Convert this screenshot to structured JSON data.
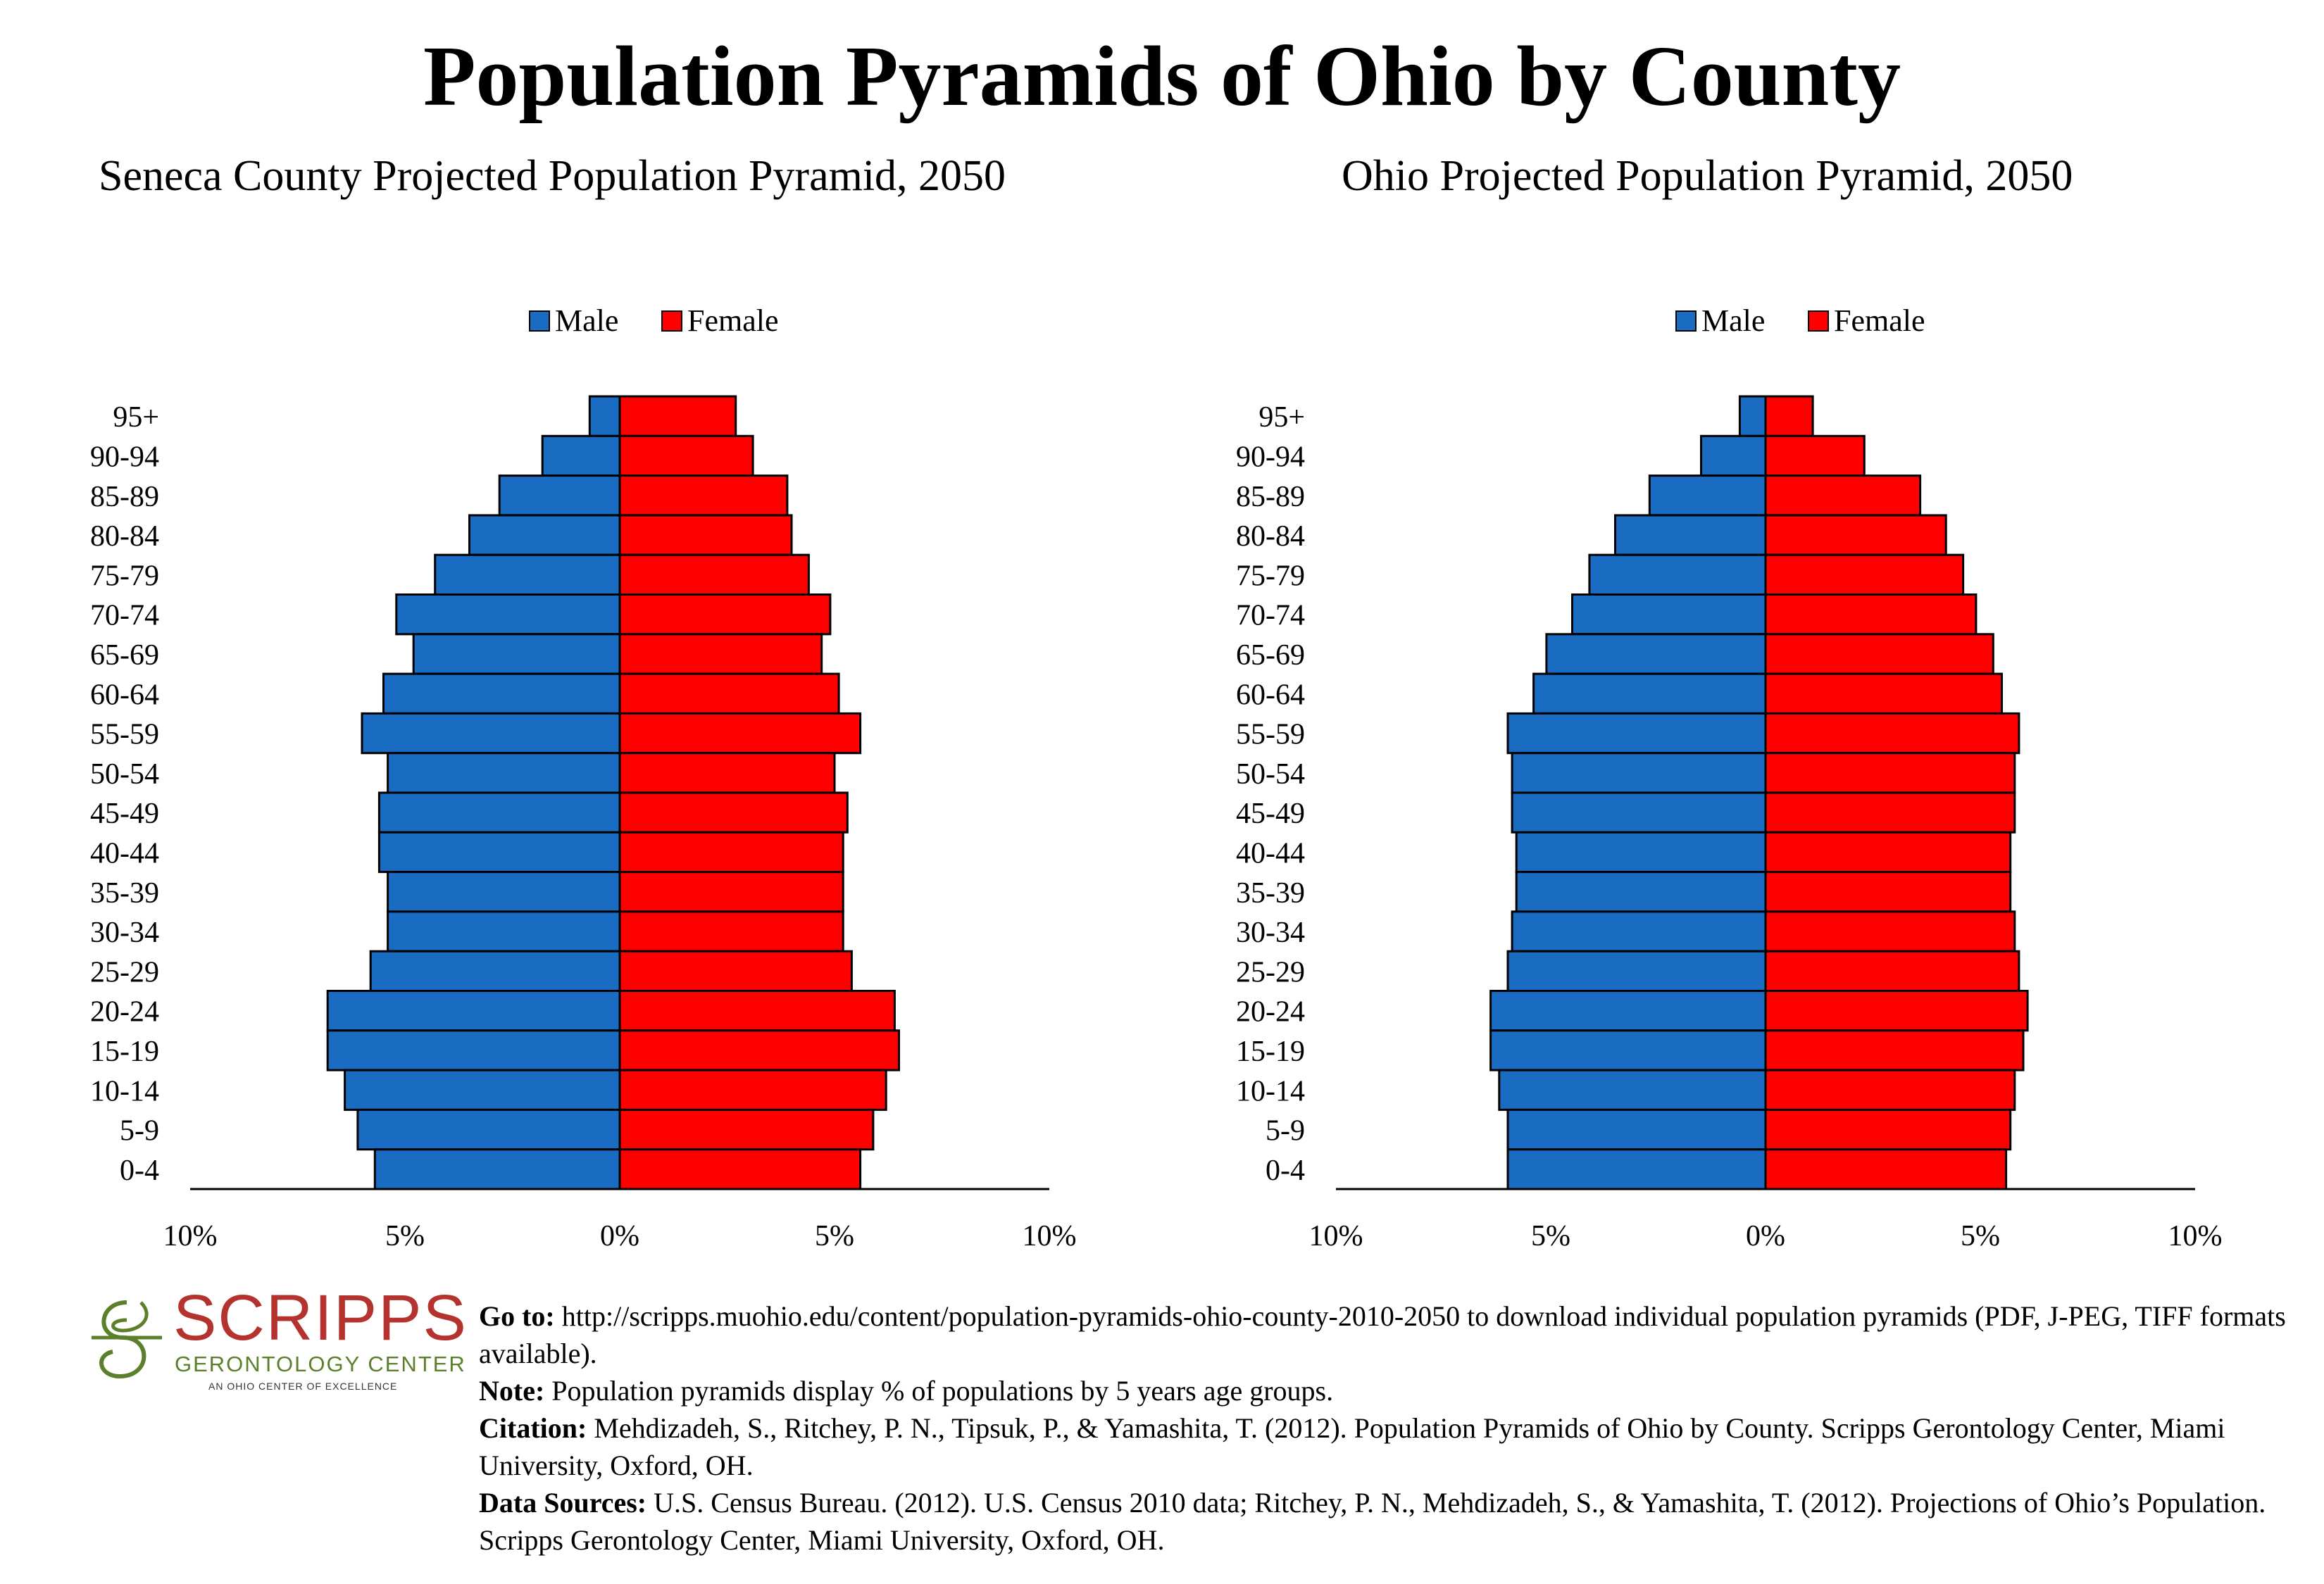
{
  "title": "Population Pyramids of Ohio by County",
  "colors": {
    "male": "#1a6bc2",
    "female": "#ff0000",
    "outline": "#000000"
  },
  "chart_data": [
    {
      "type": "bar",
      "title": "Seneca County Projected Population Pyramid, 2050",
      "categories": [
        "95+",
        "90-94",
        "85-89",
        "80-84",
        "75-79",
        "70-74",
        "65-69",
        "60-64",
        "55-59",
        "50-54",
        "45-49",
        "40-44",
        "35-39",
        "30-34",
        "25-29",
        "20-24",
        "15-19",
        "10-14",
        "5-9",
        "0-4"
      ],
      "series": [
        {
          "name": "Male",
          "values": [
            0.7,
            1.8,
            2.8,
            3.5,
            4.3,
            5.2,
            4.8,
            5.5,
            6.0,
            5.4,
            5.6,
            5.6,
            5.4,
            5.4,
            5.8,
            6.8,
            6.8,
            6.4,
            6.1,
            5.7
          ]
        },
        {
          "name": "Female",
          "values": [
            2.7,
            3.1,
            3.9,
            4.0,
            4.4,
            4.9,
            4.7,
            5.1,
            5.6,
            5.0,
            5.3,
            5.2,
            5.2,
            5.2,
            5.4,
            6.4,
            6.5,
            6.2,
            5.9,
            5.6
          ]
        }
      ],
      "xlim": [
        -10,
        10
      ],
      "xticks": [
        "10%",
        "5%",
        "0%",
        "5%",
        "10%"
      ],
      "legend": [
        "Male",
        "Female"
      ],
      "legend_position": "top-center",
      "grid": false
    },
    {
      "type": "bar",
      "title": "Ohio Projected Population Pyramid, 2050",
      "categories": [
        "95+",
        "90-94",
        "85-89",
        "80-84",
        "75-79",
        "70-74",
        "65-69",
        "60-64",
        "55-59",
        "50-54",
        "45-49",
        "40-44",
        "35-39",
        "30-34",
        "25-29",
        "20-24",
        "15-19",
        "10-14",
        "5-9",
        "0-4"
      ],
      "series": [
        {
          "name": "Male",
          "values": [
            0.6,
            1.5,
            2.7,
            3.5,
            4.1,
            4.5,
            5.1,
            5.4,
            6.0,
            5.9,
            5.9,
            5.8,
            5.8,
            5.9,
            6.0,
            6.4,
            6.4,
            6.2,
            6.0,
            6.0
          ]
        },
        {
          "name": "Female",
          "values": [
            1.1,
            2.3,
            3.6,
            4.2,
            4.6,
            4.9,
            5.3,
            5.5,
            5.9,
            5.8,
            5.8,
            5.7,
            5.7,
            5.8,
            5.9,
            6.1,
            6.0,
            5.8,
            5.7,
            5.6
          ]
        }
      ],
      "xlim": [
        -10,
        10
      ],
      "xticks": [
        "10%",
        "5%",
        "0%",
        "5%",
        "10%"
      ],
      "legend": [
        "Male",
        "Female"
      ],
      "legend_position": "top-center",
      "grid": false
    }
  ],
  "logo": {
    "word": "SCRIPPS",
    "subtitle": "GERONTOLOGY CENTER",
    "tagline": "AN OHIO CENTER OF EXCELLENCE"
  },
  "footer": {
    "goto_label": "Go to:",
    "goto_text": " http://scripps.muohio.edu/content/population-pyramids-ohio-county-2010-2050 to download individual population pyramids (PDF, J-PEG, TIFF formats available).",
    "note_label": "Note:",
    "note_text": " Population pyramids display % of populations by 5 years age groups.",
    "citation_label": "Citation:",
    "citation_text": " Mehdizadeh, S., Ritchey, P. N., Tipsuk, P., & Yamashita, T. (2012). Population Pyramids of Ohio by County. Scripps Gerontology Center, Miami University, Oxford, OH.",
    "sources_label": "Data Sources:",
    "sources_text": " U.S. Census Bureau. (2012). U.S. Census 2010 data; Ritchey, P. N., Mehdizadeh, S., & Yamashita, T. (2012). Projections of Ohio’s Population. Scripps Gerontology Center, Miami University, Oxford, OH."
  }
}
